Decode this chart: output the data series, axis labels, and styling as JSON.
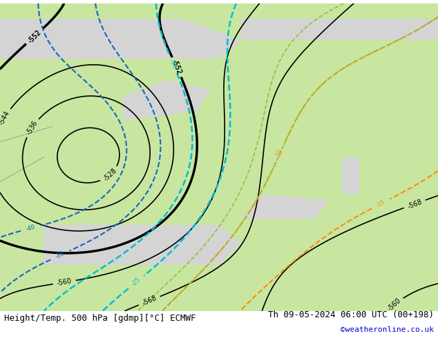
{
  "title_left": "Height/Temp. 500 hPa [gdmp][°C] ECMWF",
  "title_right": "Th 09-05-2024 06:00 UTC (00+198)",
  "title_right2": "©weatheronline.co.uk",
  "bg_color_land": "#c8e6a0",
  "bg_color_sea": "#e8e8e8",
  "bg_color_bottom": "#ffffff",
  "text_color_right": "#0000cc",
  "label_fontsize": 7,
  "title_fontsize": 9
}
